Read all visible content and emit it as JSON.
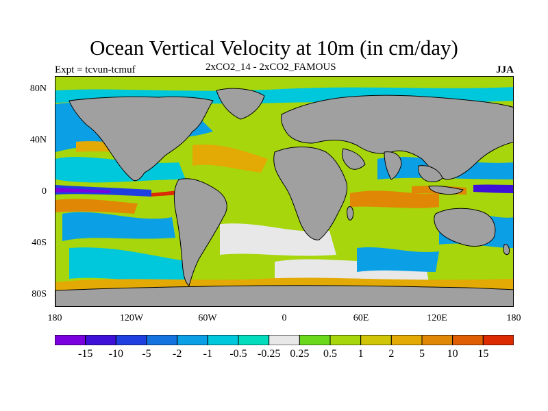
{
  "title": "Ocean Vertical Velocity at 10m (in cm/day)",
  "subtitle_left": "Expt = tcvun-tcmuf",
  "subtitle_center": "2xCO2_14 - 2xCO2_FAMOUS",
  "subtitle_right": "JJA",
  "lat_labels": [
    "80N",
    "40N",
    "0",
    "40S",
    "80S"
  ],
  "lon_labels": [
    "180",
    "120W",
    "60W",
    "0",
    "60E",
    "120E",
    "180"
  ],
  "colorbar": {
    "colors": [
      "#7a00e0",
      "#3e10d8",
      "#1f3fe0",
      "#1473df",
      "#0ba0e6",
      "#00c8dc",
      "#04dcbe",
      "#e8e8e8",
      "#6cd81c",
      "#a6d60b",
      "#d0c506",
      "#e3aa05",
      "#e08805",
      "#df5e04",
      "#dc2a02"
    ],
    "labels": [
      "-15",
      "-10",
      "-5",
      "-2",
      "-1",
      "-0.5",
      "-0.25",
      "0.25",
      "0.5",
      "1",
      "2",
      "5",
      "10",
      "15"
    ]
  },
  "land_color": "#a0a0a0"
}
